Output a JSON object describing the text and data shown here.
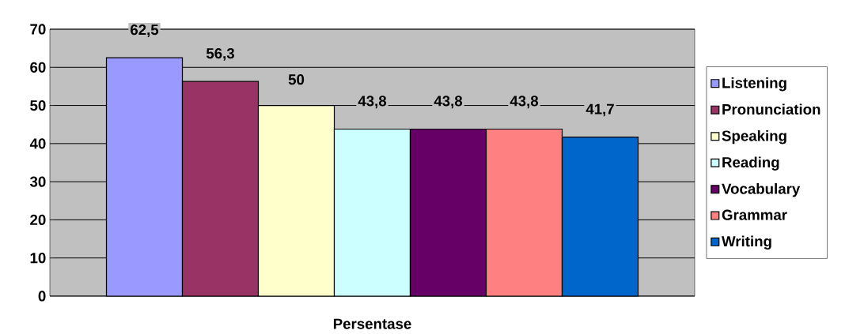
{
  "chart_data": {
    "type": "bar",
    "categories": [
      "Persentase"
    ],
    "series": [
      {
        "name": "Listening",
        "color": "#9999ff",
        "values": [
          62.5
        ],
        "value_labels": [
          "62,5"
        ]
      },
      {
        "name": "Pronunciation",
        "color": "#993366",
        "values": [
          56.3
        ],
        "value_labels": [
          "56,3"
        ]
      },
      {
        "name": "Speaking",
        "color": "#ffffcc",
        "values": [
          50
        ],
        "value_labels": [
          "50"
        ]
      },
      {
        "name": "Reading",
        "color": "#ccffff",
        "values": [
          43.8
        ],
        "value_labels": [
          "43,8"
        ]
      },
      {
        "name": "Vocabulary",
        "color": "#660066",
        "values": [
          43.8
        ],
        "value_labels": [
          "43,8"
        ]
      },
      {
        "name": "Grammar",
        "color": "#ff8080",
        "values": [
          43.8
        ],
        "value_labels": [
          "43,8"
        ]
      },
      {
        "name": "Writing",
        "color": "#0066cc",
        "values": [
          41.7
        ],
        "value_labels": [
          "41,7"
        ]
      }
    ],
    "ylim": [
      0,
      70
    ],
    "yticks": [
      0,
      10,
      20,
      30,
      40,
      50,
      60,
      70
    ],
    "grid": "y",
    "legend": "right"
  }
}
